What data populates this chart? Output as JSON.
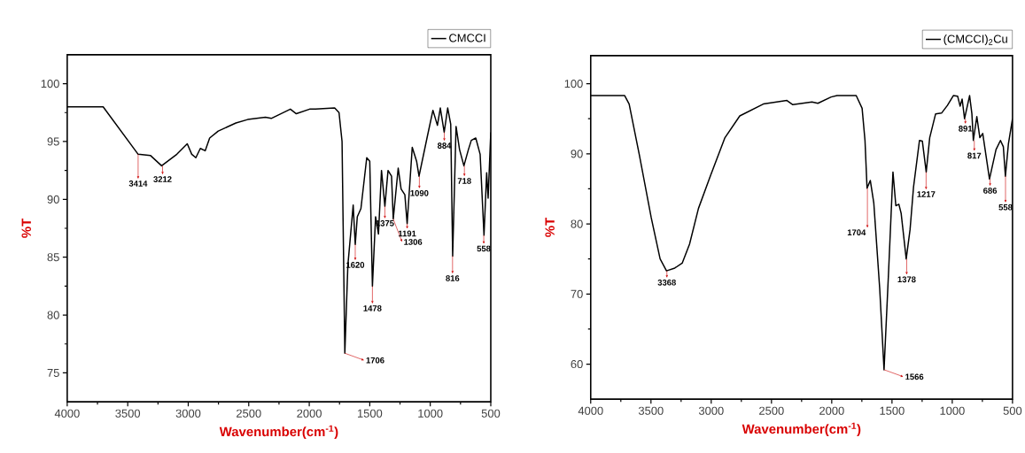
{
  "chart_data": [
    {
      "type": "line",
      "xlabel": "Wavenumber(cm$^{-1}$)",
      "ylabel": "%T",
      "xlim": [
        4000,
        500
      ],
      "ylim": [
        72.5,
        102.5
      ],
      "xticks": [
        4000,
        3500,
        3000,
        2500,
        2000,
        1500,
        1000,
        500
      ],
      "yticks": [
        75,
        80,
        85,
        90,
        95,
        100
      ],
      "legend": "top right",
      "series": [
        {
          "name": "CMCCI",
          "color": "#000000",
          "x": [
            4000,
            3703,
            3414,
            3313,
            3220,
            3094,
            3008,
            2971,
            2937,
            2900,
            2860,
            2823,
            2752,
            2606,
            2509,
            2362,
            2314,
            2156,
            2107,
            1997,
            1949,
            1790,
            1754,
            1729,
            1706,
            1681,
            1637,
            1620,
            1603,
            1573,
            1525,
            1500,
            1478,
            1452,
            1428,
            1403,
            1375,
            1349,
            1320,
            1306,
            1265,
            1241,
            1210,
            1191,
            1149,
            1113,
            1093,
            1027,
            978,
            941,
            917,
            885,
            856,
            831,
            815,
            787,
            758,
            722,
            685,
            661,
            624,
            588,
            556,
            534,
            522,
            500
          ],
          "values": [
            98.0,
            98.0,
            93.9,
            93.8,
            92.9,
            93.9,
            94.8,
            93.9,
            93.6,
            94.4,
            94.2,
            95.3,
            95.9,
            96.6,
            96.9,
            97.1,
            97.0,
            97.8,
            97.4,
            97.8,
            97.8,
            97.9,
            97.5,
            95.0,
            76.7,
            84.3,
            89.5,
            86.1,
            88.5,
            89.2,
            93.6,
            93.3,
            82.5,
            88.5,
            87.0,
            92.5,
            89.4,
            92.5,
            92.0,
            88.3,
            92.7,
            90.9,
            90.4,
            87.9,
            94.5,
            93.3,
            92.0,
            95.3,
            97.7,
            96.4,
            97.9,
            95.8,
            97.9,
            96.5,
            85.1,
            96.3,
            94.3,
            92.9,
            94.3,
            95.1,
            95.3,
            93.9,
            86.9,
            92.3,
            90.1,
            95.8
          ]
        }
      ],
      "annotations": [
        {
          "text": "3414",
          "x": 3414,
          "y": 93.9
        },
        {
          "text": "3212",
          "x": 3212,
          "y": 92.9
        },
        {
          "text": "1706",
          "x": 1706,
          "y": 76.7
        },
        {
          "text": "1620",
          "x": 1620,
          "y": 86.1
        },
        {
          "text": "1478",
          "x": 1478,
          "y": 82.5
        },
        {
          "text": "1375",
          "x": 1375,
          "y": 89.4
        },
        {
          "text": "1306",
          "x": 1306,
          "y": 88.3
        },
        {
          "text": "1191",
          "x": 1191,
          "y": 87.9
        },
        {
          "text": "1090",
          "x": 1090,
          "y": 92.0
        },
        {
          "text": "884",
          "x": 884,
          "y": 95.8
        },
        {
          "text": "816",
          "x": 816,
          "y": 85.1
        },
        {
          "text": "718",
          "x": 718,
          "y": 92.9
        },
        {
          "text": "558",
          "x": 558,
          "y": 86.9
        }
      ]
    },
    {
      "type": "line",
      "xlabel": "Wavenumber(cm$^{-1}$)",
      "ylabel": "%T",
      "xlim": [
        4000,
        500
      ],
      "ylim": [
        55,
        104
      ],
      "xticks": [
        4000,
        3500,
        3000,
        2500,
        2000,
        1500,
        1000,
        500
      ],
      "yticks": [
        60,
        70,
        80,
        90,
        100
      ],
      "legend": "top right",
      "series": [
        {
          "name": "(CMCCI)$_{2}$Cu",
          "color": "#000000",
          "x": [
            4000,
            3718,
            3681,
            3596,
            3498,
            3424,
            3371,
            3302,
            3241,
            3180,
            3106,
            3008,
            2886,
            2763,
            2568,
            2372,
            2323,
            2164,
            2115,
            2005,
            1956,
            1797,
            1748,
            1724,
            1707,
            1680,
            1651,
            1602,
            1566,
            1529,
            1492,
            1468,
            1443,
            1424,
            1382,
            1350,
            1321,
            1272,
            1248,
            1216,
            1187,
            1138,
            1089,
            1040,
            991,
            955,
            935,
            918,
            898,
            856,
            837,
            825,
            796,
            771,
            747,
            691,
            637,
            600,
            576,
            559,
            534,
            500
          ],
          "values": [
            98.3,
            98.3,
            97.1,
            89.8,
            80.9,
            75.0,
            73.3,
            73.7,
            74.4,
            77.1,
            82.2,
            86.8,
            92.3,
            95.4,
            97.1,
            97.6,
            97.0,
            97.4,
            97.2,
            98.1,
            98.3,
            98.3,
            96.5,
            91.9,
            85.1,
            86.2,
            83.0,
            70.8,
            59.2,
            72.9,
            87.4,
            82.6,
            82.8,
            81.5,
            75.0,
            79.2,
            85.3,
            91.9,
            91.8,
            87.4,
            92.3,
            95.7,
            95.8,
            96.9,
            98.3,
            98.2,
            96.8,
            97.8,
            95.0,
            98.3,
            95.7,
            91.9,
            95.3,
            92.3,
            92.9,
            86.4,
            90.6,
            91.9,
            91.0,
            86.8,
            91.4,
            95.0
          ]
        }
      ],
      "annotations": [
        {
          "text": "3368",
          "x": 3368,
          "y": 73.3
        },
        {
          "text": "1704",
          "x": 1704,
          "y": 85.1
        },
        {
          "text": "1566",
          "x": 1566,
          "y": 59.2
        },
        {
          "text": "1378",
          "x": 1378,
          "y": 75.0
        },
        {
          "text": "1217",
          "x": 1217,
          "y": 87.4
        },
        {
          "text": "891",
          "x": 891,
          "y": 95.0
        },
        {
          "text": "817",
          "x": 817,
          "y": 91.9
        },
        {
          "text": "686",
          "x": 686,
          "y": 86.4
        },
        {
          "text": "558",
          "x": 558,
          "y": 86.8
        }
      ]
    }
  ]
}
